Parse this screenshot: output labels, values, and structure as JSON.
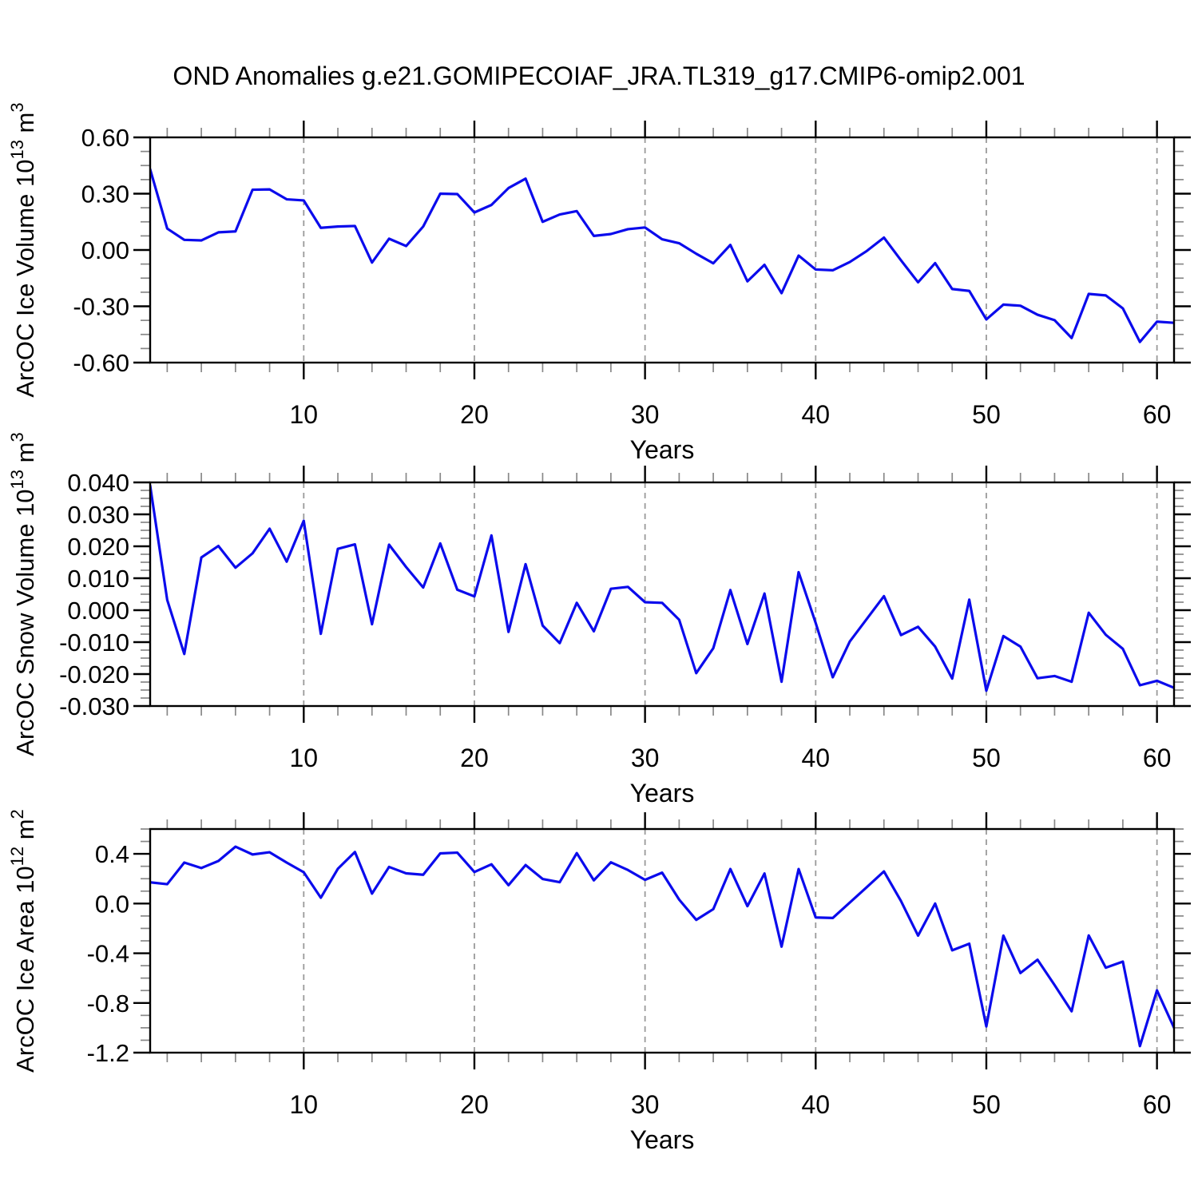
{
  "title": "OND Anomalies g.e21.GOMIPECOIAF_JRA.TL319_g17.CMIP6-omip2.001",
  "colors": {
    "line": "#0b0bec",
    "axis": "#000000",
    "grid": "#9a9a9a",
    "minor_tick": "#888888",
    "background": "#ffffff"
  },
  "chart_data": [
    {
      "type": "line",
      "panel_name": "arcoc-ice-volume",
      "ylabel": "ArcOC Ice Volume 10^13 m^3",
      "ylabel_parts": [
        {
          "t": "ArcOC Ice Volume 10"
        },
        {
          "t": "13",
          "sup": true
        },
        {
          "t": " m"
        },
        {
          "t": "3",
          "sup": true
        }
      ],
      "xlabel": "Years",
      "legend": "none",
      "grid": "x-dashed",
      "xlim": [
        1,
        61
      ],
      "ylim": [
        -0.6,
        0.6
      ],
      "xticks": [
        10,
        20,
        30,
        40,
        50,
        60
      ],
      "xtick_labels": [
        "10",
        "20",
        "30",
        "40",
        "50",
        "60"
      ],
      "minor_x_step": 2,
      "yticks": [
        0.6,
        0.3,
        0.0,
        -0.3,
        -0.6
      ],
      "ytick_labels": [
        "0.60",
        "0.30",
        "0.00",
        "-0.30",
        "-0.60"
      ],
      "minor_y_step": 0.075,
      "x_start": 1,
      "x_step": 1,
      "values": [
        0.43,
        0.114,
        0.054,
        0.051,
        0.094,
        0.099,
        0.321,
        0.323,
        0.27,
        0.264,
        0.118,
        0.125,
        0.128,
        -0.067,
        0.06,
        0.021,
        0.125,
        0.3,
        0.298,
        0.2,
        0.24,
        0.33,
        0.38,
        0.15,
        0.189,
        0.207,
        0.075,
        0.085,
        0.111,
        0.12,
        0.057,
        0.036,
        -0.02,
        -0.071,
        0.027,
        -0.167,
        -0.079,
        -0.23,
        -0.03,
        -0.104,
        -0.108,
        -0.064,
        -0.005,
        0.066,
        -0.055,
        -0.172,
        -0.07,
        -0.208,
        -0.218,
        -0.37,
        -0.291,
        -0.297,
        -0.345,
        -0.374,
        -0.469,
        -0.234,
        -0.242,
        -0.311,
        -0.49,
        -0.382,
        -0.388
      ]
    },
    {
      "type": "line",
      "panel_name": "arcoc-snow-volume",
      "ylabel": "ArcOC Snow Volume 10^13 m^3",
      "ylabel_parts": [
        {
          "t": "ArcOC Snow Volume 10"
        },
        {
          "t": "13",
          "sup": true
        },
        {
          "t": " m"
        },
        {
          "t": "3",
          "sup": true
        }
      ],
      "xlabel": "Years",
      "legend": "none",
      "grid": "x-dashed",
      "xlim": [
        1,
        61
      ],
      "ylim": [
        -0.03,
        0.04
      ],
      "xticks": [
        10,
        20,
        30,
        40,
        50,
        60
      ],
      "xtick_labels": [
        "10",
        "20",
        "30",
        "40",
        "50",
        "60"
      ],
      "minor_x_step": 2,
      "yticks": [
        0.04,
        0.03,
        0.02,
        0.01,
        0.0,
        -0.01,
        -0.02,
        -0.03
      ],
      "ytick_labels": [
        "0.040",
        "0.030",
        "0.020",
        "0.010",
        "0.000",
        "-0.010",
        "-0.020",
        "-0.030"
      ],
      "minor_y_step": 0.0025,
      "x_start": 1,
      "x_step": 1,
      "values": [
        0.039,
        0.0032,
        -0.0137,
        0.0165,
        0.0201,
        0.0133,
        0.0178,
        0.0255,
        0.0152,
        0.028,
        -0.0074,
        0.0192,
        0.0206,
        -0.0044,
        0.0205,
        0.0135,
        0.0071,
        0.0209,
        0.0064,
        0.0043,
        0.0234,
        -0.0068,
        0.0144,
        -0.0048,
        -0.0103,
        0.0023,
        -0.0066,
        0.0067,
        0.0073,
        0.0025,
        0.0023,
        -0.003,
        -0.0197,
        -0.0119,
        0.0063,
        -0.0106,
        0.0052,
        -0.0224,
        0.0119,
        -0.004,
        -0.021,
        -0.0098,
        -0.0027,
        0.0044,
        -0.0078,
        -0.0052,
        -0.0114,
        -0.0214,
        0.0033,
        -0.0252,
        -0.0081,
        -0.0114,
        -0.0213,
        -0.0206,
        -0.0224,
        -0.0008,
        -0.0077,
        -0.0121,
        -0.0235,
        -0.0221,
        -0.0243
      ]
    },
    {
      "type": "line",
      "panel_name": "arcoc-ice-area",
      "ylabel": "ArcOC Ice Area 10^12 m^2",
      "ylabel_parts": [
        {
          "t": "ArcOC Ice Area 10"
        },
        {
          "t": "12",
          "sup": true
        },
        {
          "t": " m"
        },
        {
          "t": "2",
          "sup": true
        }
      ],
      "xlabel": "Years",
      "legend": "none",
      "grid": "x-dashed",
      "xlim": [
        1,
        61
      ],
      "ylim": [
        -1.2,
        0.6
      ],
      "xticks": [
        10,
        20,
        30,
        40,
        50,
        60
      ],
      "xtick_labels": [
        "10",
        "20",
        "30",
        "40",
        "50",
        "60"
      ],
      "minor_x_step": 2,
      "yticks": [
        0.4,
        0.0,
        -0.4,
        -0.8,
        -1.2
      ],
      "ytick_labels": [
        "0.4",
        "0.0",
        "-0.4",
        "-0.8",
        "-1.2"
      ],
      "minor_y_step": 0.1,
      "x_start": 1,
      "x_step": 1,
      "values": [
        0.171,
        0.156,
        0.33,
        0.286,
        0.343,
        0.458,
        0.395,
        0.413,
        0.33,
        0.252,
        0.047,
        0.28,
        0.415,
        0.08,
        0.295,
        0.243,
        0.232,
        0.404,
        0.41,
        0.254,
        0.316,
        0.148,
        0.31,
        0.198,
        0.172,
        0.406,
        0.187,
        0.332,
        0.27,
        0.191,
        0.249,
        0.032,
        -0.131,
        -0.045,
        0.278,
        -0.021,
        0.242,
        -0.347,
        0.278,
        -0.112,
        -0.116,
        0.008,
        0.133,
        0.259,
        0.02,
        -0.258,
        0.0,
        -0.376,
        -0.323,
        -0.989,
        -0.258,
        -0.559,
        -0.452,
        -0.656,
        -0.867,
        -0.257,
        -0.516,
        -0.467,
        -1.147,
        -0.699,
        -1.0
      ]
    }
  ]
}
